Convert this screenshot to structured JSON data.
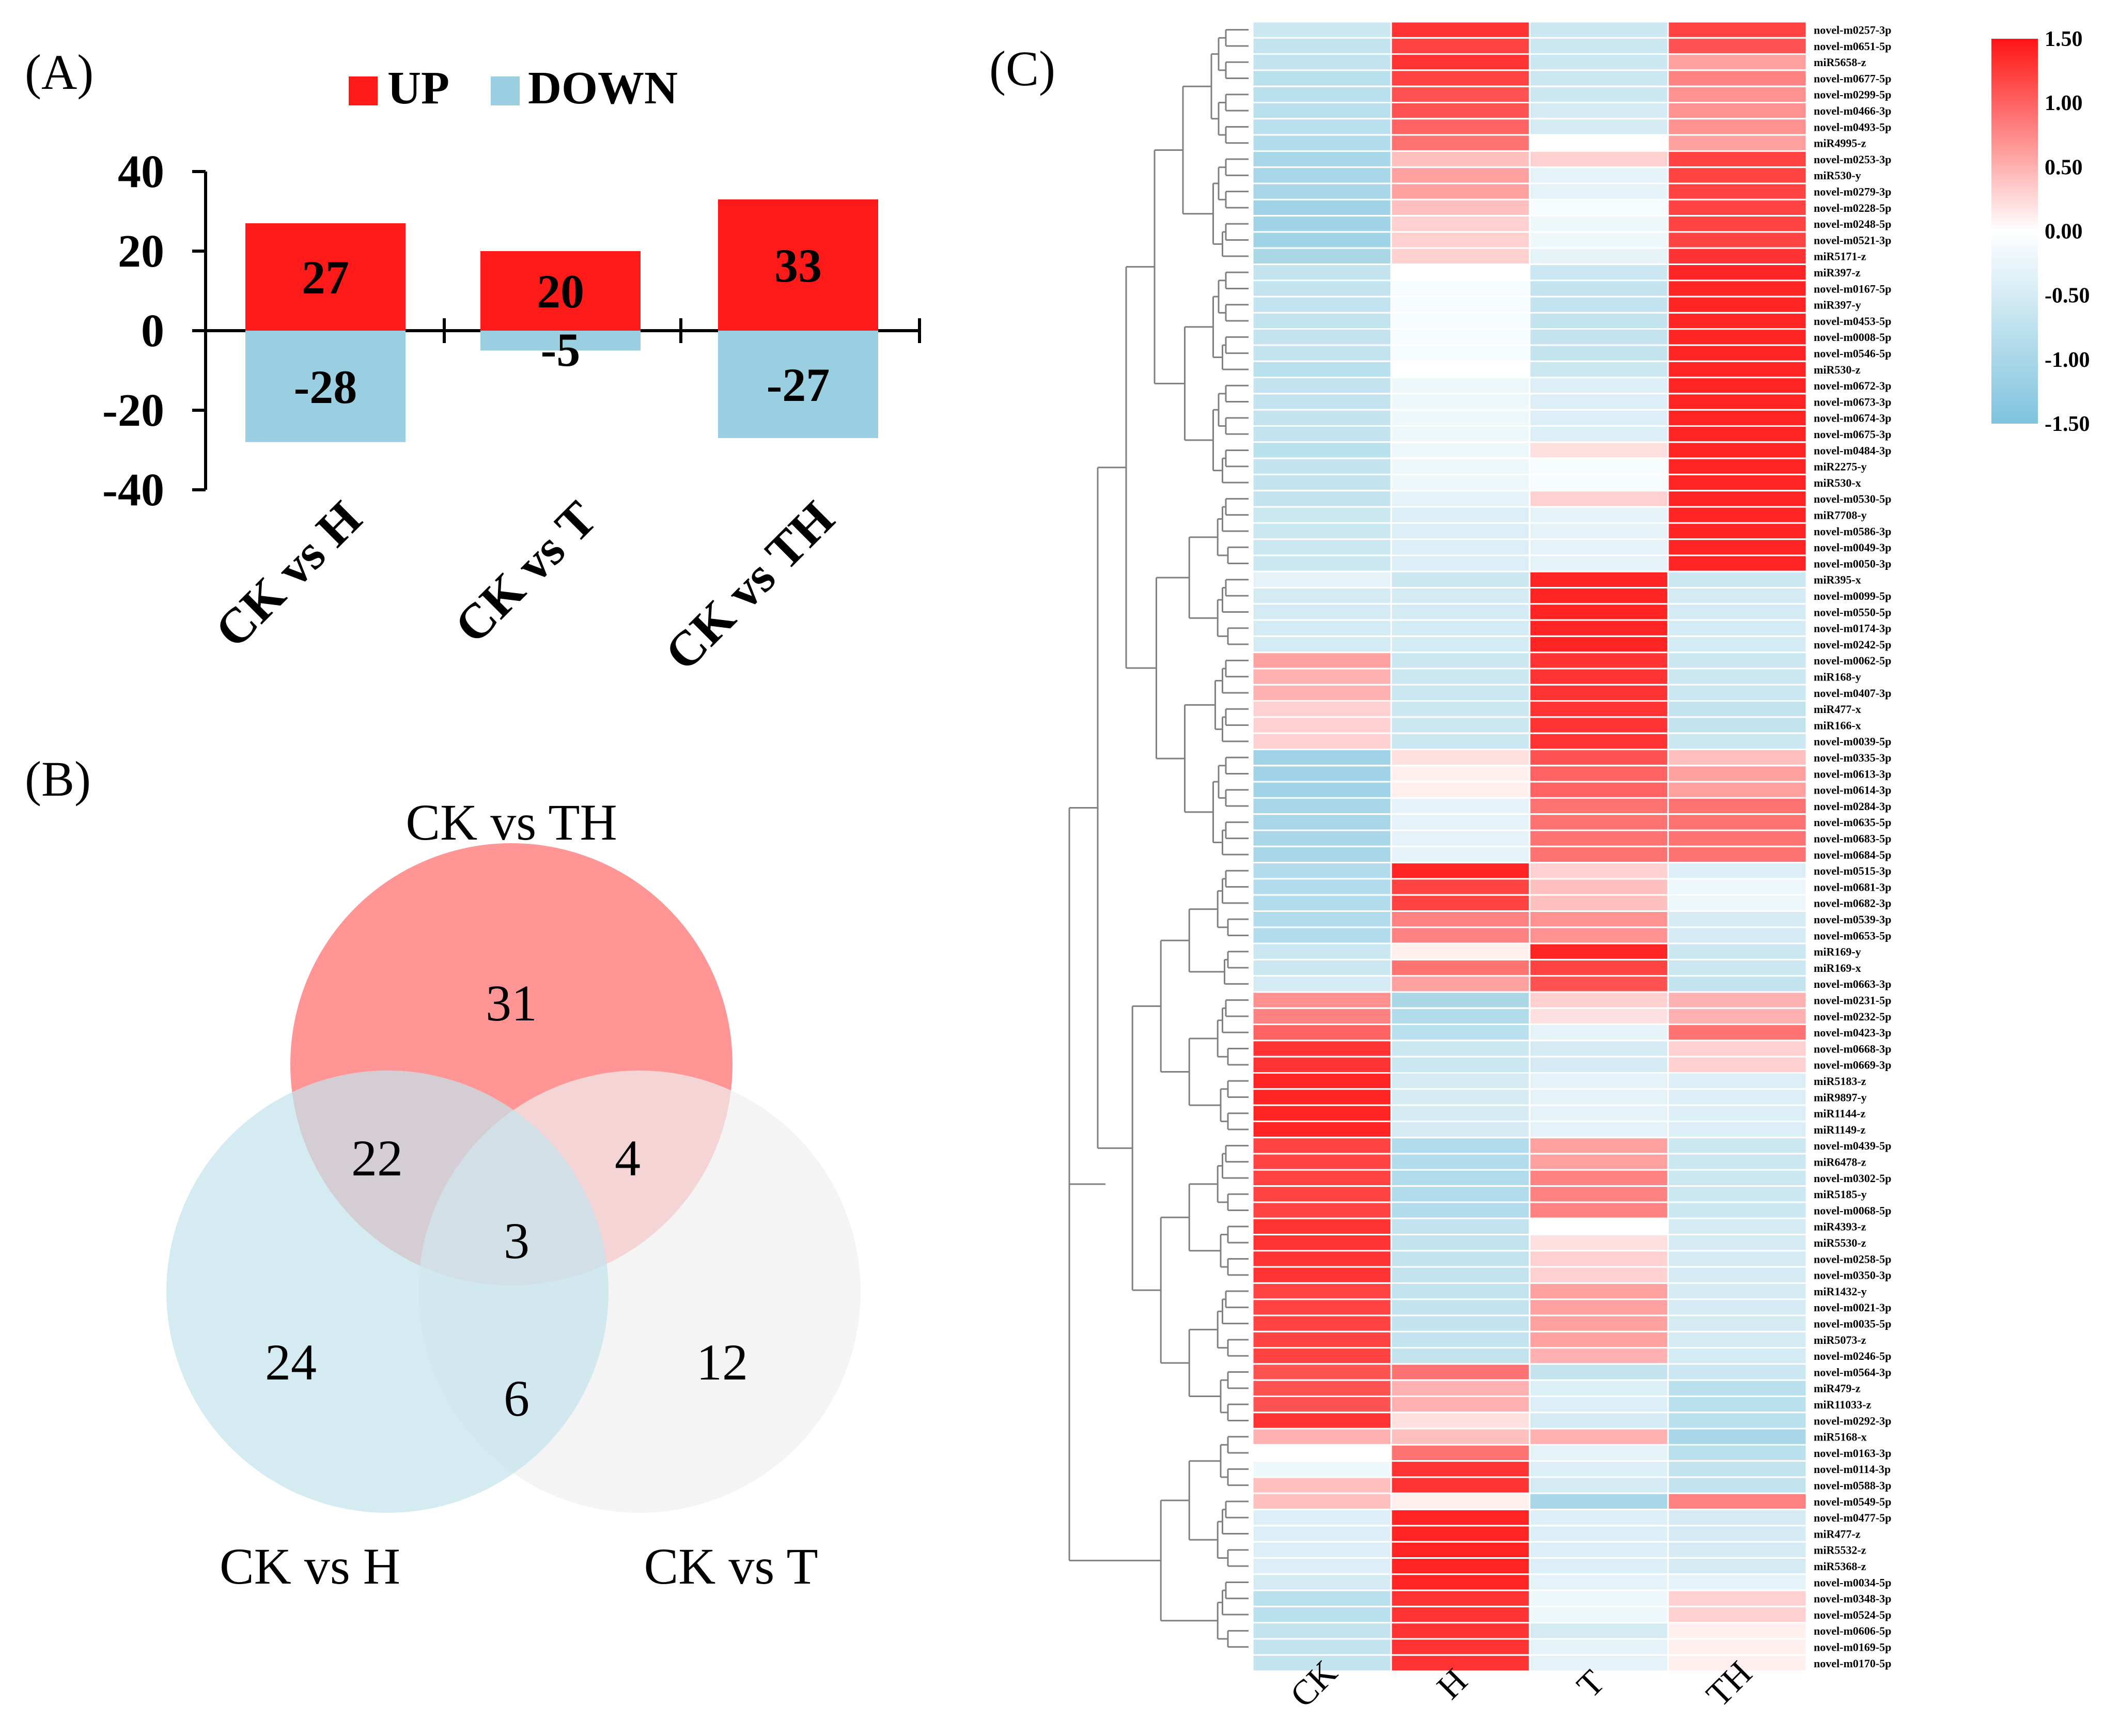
{
  "panels": {
    "a": "(A)",
    "b": "(B)",
    "c": "(C)"
  },
  "chart_data": [
    {
      "id": "panel-a",
      "type": "bar",
      "categories": [
        "CK vs H",
        "CK vs T",
        "CK vs TH"
      ],
      "series": [
        {
          "name": "UP",
          "values": [
            27,
            20,
            33
          ],
          "color": "#ff1a1a"
        },
        {
          "name": "DOWN",
          "values": [
            -28,
            -5,
            -27
          ],
          "color": "#99cfe0"
        }
      ],
      "title": "",
      "xlabel": "",
      "ylabel": "",
      "ylim": [
        -40,
        40
      ],
      "yticks": [
        40,
        20,
        0,
        -20,
        -40
      ],
      "legend_position": "top"
    },
    {
      "id": "panel-b",
      "type": "venn",
      "sets": [
        {
          "name": "CK vs TH",
          "color": "#ff8a8a"
        },
        {
          "name": "CK vs H",
          "color": "#c5e3ed"
        },
        {
          "name": "CK vs T",
          "color": "#f0f0f0"
        }
      ],
      "regions": {
        "TH_only": 31,
        "H_only": 24,
        "T_only": 12,
        "H_TH": 22,
        "TH_T": 4,
        "H_T": 6,
        "all": 3
      }
    },
    {
      "id": "panel-c",
      "type": "heatmap",
      "columns": [
        "CK",
        "H",
        "T",
        "TH"
      ],
      "colorbar": {
        "min": -1.5,
        "max": 1.5,
        "ticks": [
          "1.50",
          "1.00",
          "0.50",
          "0.00",
          "-0.50",
          "-1.00",
          "-1.50"
        ],
        "low_color": "#7ec3dd",
        "mid_color": "#ffffff",
        "high_color": "#ff1414"
      },
      "rows": [
        {
          "label": "novel-m0257-3p",
          "values": [
            -0.6,
            1.3,
            -0.6,
            1.2
          ]
        },
        {
          "label": "novel-m0651-5p",
          "values": [
            -0.7,
            1.2,
            -0.6,
            1.1
          ]
        },
        {
          "label": "miR5658-z",
          "values": [
            -0.7,
            1.3,
            -0.6,
            0.6
          ]
        },
        {
          "label": "novel-m0677-5p",
          "values": [
            -0.8,
            1.2,
            -0.6,
            0.8
          ]
        },
        {
          "label": "novel-m0299-5p",
          "values": [
            -0.8,
            1.1,
            -0.6,
            0.7
          ]
        },
        {
          "label": "novel-m0466-3p",
          "values": [
            -0.8,
            1.1,
            -0.5,
            0.7
          ]
        },
        {
          "label": "novel-m0493-5p",
          "values": [
            -0.8,
            1.0,
            -0.5,
            0.7
          ]
        },
        {
          "label": "miR4995-z",
          "values": [
            -0.9,
            0.9,
            0.0,
            0.6
          ]
        },
        {
          "label": "novel-m0253-3p",
          "values": [
            -1.0,
            0.4,
            0.3,
            1.2
          ]
        },
        {
          "label": "miR530-y",
          "values": [
            -1.0,
            0.6,
            -0.3,
            1.2
          ]
        },
        {
          "label": "novel-m0279-3p",
          "values": [
            -1.0,
            0.6,
            -0.3,
            1.2
          ]
        },
        {
          "label": "novel-m0228-5p",
          "values": [
            -1.1,
            0.4,
            -0.1,
            1.2
          ]
        },
        {
          "label": "novel-m0248-5p",
          "values": [
            -1.1,
            0.3,
            -0.2,
            1.2
          ]
        },
        {
          "label": "novel-m0521-3p",
          "values": [
            -1.1,
            0.3,
            -0.2,
            1.2
          ]
        },
        {
          "label": "miR5171-z",
          "values": [
            -1.0,
            0.3,
            -0.3,
            1.3
          ]
        },
        {
          "label": "miR397-z",
          "values": [
            -0.7,
            0.0,
            -0.6,
            1.4
          ]
        },
        {
          "label": "novel-m0167-5p",
          "values": [
            -0.7,
            -0.1,
            -0.7,
            1.4
          ]
        },
        {
          "label": "miR397-y",
          "values": [
            -0.7,
            -0.1,
            -0.7,
            1.4
          ]
        },
        {
          "label": "novel-m0453-5p",
          "values": [
            -0.7,
            -0.1,
            -0.7,
            1.4
          ]
        },
        {
          "label": "novel-m0008-5p",
          "values": [
            -0.7,
            -0.1,
            -0.7,
            1.4
          ]
        },
        {
          "label": "novel-m0546-5p",
          "values": [
            -0.7,
            -0.1,
            -0.7,
            1.4
          ]
        },
        {
          "label": "miR530-z",
          "values": [
            -0.8,
            0.0,
            -0.6,
            1.4
          ]
        },
        {
          "label": "novel-m0672-3p",
          "values": [
            -0.7,
            -0.2,
            -0.4,
            1.4
          ]
        },
        {
          "label": "novel-m0673-3p",
          "values": [
            -0.7,
            -0.2,
            -0.4,
            1.4
          ]
        },
        {
          "label": "novel-m0674-3p",
          "values": [
            -0.7,
            -0.2,
            -0.4,
            1.4
          ]
        },
        {
          "label": "novel-m0675-3p",
          "values": [
            -0.7,
            -0.2,
            -0.4,
            1.4
          ]
        },
        {
          "label": "novel-m0484-3p",
          "values": [
            -0.8,
            -0.2,
            0.2,
            1.4
          ]
        },
        {
          "label": "miR2275-y",
          "values": [
            -0.7,
            -0.2,
            -0.1,
            1.4
          ]
        },
        {
          "label": "miR530-x",
          "values": [
            -0.7,
            -0.2,
            -0.1,
            1.4
          ]
        },
        {
          "label": "novel-m0530-5p",
          "values": [
            -0.7,
            -0.3,
            0.3,
            1.4
          ]
        },
        {
          "label": "miR7708-y",
          "values": [
            -0.6,
            -0.4,
            -0.3,
            1.4
          ]
        },
        {
          "label": "novel-m0586-3p",
          "values": [
            -0.6,
            -0.4,
            -0.3,
            1.4
          ]
        },
        {
          "label": "novel-m0049-3p",
          "values": [
            -0.6,
            -0.4,
            -0.3,
            1.4
          ]
        },
        {
          "label": "novel-m0050-3p",
          "values": [
            -0.6,
            -0.4,
            -0.3,
            1.4
          ]
        },
        {
          "label": "miR395-x",
          "values": [
            -0.3,
            -0.6,
            1.4,
            -0.6
          ]
        },
        {
          "label": "novel-m0099-5p",
          "values": [
            -0.5,
            -0.5,
            1.4,
            -0.5
          ]
        },
        {
          "label": "novel-m0550-5p",
          "values": [
            -0.5,
            -0.5,
            1.4,
            -0.5
          ]
        },
        {
          "label": "novel-m0174-3p",
          "values": [
            -0.5,
            -0.5,
            1.4,
            -0.5
          ]
        },
        {
          "label": "novel-m0242-5p",
          "values": [
            -0.5,
            -0.5,
            1.4,
            -0.5
          ]
        },
        {
          "label": "novel-m0062-5p",
          "values": [
            0.6,
            -0.6,
            1.3,
            -0.6
          ]
        },
        {
          "label": "miR168-y",
          "values": [
            0.5,
            -0.6,
            1.3,
            -0.6
          ]
        },
        {
          "label": "novel-m0407-3p",
          "values": [
            0.5,
            -0.6,
            1.3,
            -0.6
          ]
        },
        {
          "label": "miR477-x",
          "values": [
            0.3,
            -0.6,
            1.3,
            -0.7
          ]
        },
        {
          "label": "miR166-x",
          "values": [
            0.3,
            -0.6,
            1.3,
            -0.7
          ]
        },
        {
          "label": "novel-m0039-5p",
          "values": [
            0.3,
            -0.6,
            1.3,
            -0.6
          ]
        },
        {
          "label": "novel-m0335-3p",
          "values": [
            -1.1,
            0.2,
            1.1,
            0.4
          ]
        },
        {
          "label": "novel-m0613-3p",
          "values": [
            -1.1,
            0.1,
            1.0,
            0.6
          ]
        },
        {
          "label": "novel-m0614-3p",
          "values": [
            -1.1,
            0.1,
            1.0,
            0.6
          ]
        },
        {
          "label": "novel-m0284-3p",
          "values": [
            -1.0,
            -0.3,
            0.9,
            0.9
          ]
        },
        {
          "label": "novel-m0635-5p",
          "values": [
            -1.0,
            -0.3,
            0.9,
            0.9
          ]
        },
        {
          "label": "novel-m0683-5p",
          "values": [
            -1.0,
            -0.3,
            0.9,
            0.9
          ]
        },
        {
          "label": "novel-m0684-5p",
          "values": [
            -1.0,
            -0.3,
            0.9,
            0.9
          ]
        },
        {
          "label": "novel-m0515-3p",
          "values": [
            -0.9,
            1.4,
            0.3,
            -0.4
          ]
        },
        {
          "label": "novel-m0681-3p",
          "values": [
            -0.9,
            1.2,
            0.4,
            -0.2
          ]
        },
        {
          "label": "novel-m0682-3p",
          "values": [
            -0.9,
            1.2,
            0.4,
            -0.2
          ]
        },
        {
          "label": "novel-m0539-3p",
          "values": [
            -0.9,
            0.8,
            0.7,
            -0.5
          ]
        },
        {
          "label": "novel-m0653-5p",
          "values": [
            -0.9,
            0.8,
            0.7,
            -0.5
          ]
        },
        {
          "label": "miR169-y",
          "values": [
            -0.6,
            0.1,
            1.4,
            -0.6
          ]
        },
        {
          "label": "miR169-x",
          "values": [
            -0.6,
            0.9,
            1.2,
            -0.6
          ]
        },
        {
          "label": "novel-m0663-3p",
          "values": [
            -0.5,
            0.6,
            1.1,
            -0.7
          ]
        },
        {
          "label": "novel-m0231-5p",
          "values": [
            0.7,
            -1.0,
            0.3,
            0.5
          ]
        },
        {
          "label": "novel-m0232-5p",
          "values": [
            0.8,
            -0.9,
            0.2,
            0.5
          ]
        },
        {
          "label": "novel-m0423-3p",
          "values": [
            1.0,
            -0.8,
            -0.3,
            0.9
          ]
        },
        {
          "label": "novel-m0668-3p",
          "values": [
            1.3,
            -0.6,
            -0.5,
            0.3
          ]
        },
        {
          "label": "novel-m0669-3p",
          "values": [
            1.3,
            -0.6,
            -0.5,
            0.3
          ]
        },
        {
          "label": "miR5183-z",
          "values": [
            1.4,
            -0.5,
            -0.3,
            -0.4
          ]
        },
        {
          "label": "miR9897-y",
          "values": [
            1.4,
            -0.5,
            -0.3,
            -0.4
          ]
        },
        {
          "label": "miR1144-z",
          "values": [
            1.4,
            -0.5,
            -0.3,
            -0.4
          ]
        },
        {
          "label": "miR1149-z",
          "values": [
            1.4,
            -0.5,
            -0.3,
            -0.4
          ]
        },
        {
          "label": "novel-m0439-5p",
          "values": [
            1.2,
            -0.9,
            0.6,
            -0.6
          ]
        },
        {
          "label": "miR6478-z",
          "values": [
            1.2,
            -0.9,
            0.6,
            -0.6
          ]
        },
        {
          "label": "novel-m0302-5p",
          "values": [
            1.2,
            -0.9,
            0.8,
            -0.6
          ]
        },
        {
          "label": "miR5185-y",
          "values": [
            1.2,
            -0.9,
            0.8,
            -0.6
          ]
        },
        {
          "label": "novel-m0068-5p",
          "values": [
            1.2,
            -0.9,
            0.8,
            -0.6
          ]
        },
        {
          "label": "miR4393-z",
          "values": [
            1.3,
            -0.7,
            0.0,
            -0.5
          ]
        },
        {
          "label": "miR5530-z",
          "values": [
            1.3,
            -0.7,
            0.2,
            -0.5
          ]
        },
        {
          "label": "novel-m0258-5p",
          "values": [
            1.3,
            -0.7,
            0.3,
            -0.5
          ]
        },
        {
          "label": "novel-m0350-3p",
          "values": [
            1.3,
            -0.7,
            0.3,
            -0.5
          ]
        },
        {
          "label": "miR1432-y",
          "values": [
            1.2,
            -0.7,
            0.6,
            -0.5
          ]
        },
        {
          "label": "novel-m0021-3p",
          "values": [
            1.2,
            -0.7,
            0.6,
            -0.5
          ]
        },
        {
          "label": "novel-m0035-5p",
          "values": [
            1.2,
            -0.7,
            0.6,
            -0.5
          ]
        },
        {
          "label": "miR5073-z",
          "values": [
            1.2,
            -0.7,
            0.6,
            -0.5
          ]
        },
        {
          "label": "novel-m0246-5p",
          "values": [
            1.2,
            -0.7,
            0.5,
            -0.5
          ]
        },
        {
          "label": "novel-m0564-3p",
          "values": [
            1.1,
            0.9,
            -0.7,
            -0.6
          ]
        },
        {
          "label": "miR479-z",
          "values": [
            1.1,
            0.5,
            -0.4,
            -0.8
          ]
        },
        {
          "label": "miR11033-z",
          "values": [
            1.1,
            0.5,
            -0.4,
            -0.8
          ]
        },
        {
          "label": "novel-m0292-3p",
          "values": [
            1.3,
            0.2,
            -0.5,
            -0.8
          ]
        },
        {
          "label": "miR5168-x",
          "values": [
            0.5,
            0.4,
            0.5,
            -1.0
          ]
        },
        {
          "label": "novel-m0163-3p",
          "values": [
            0.0,
            0.9,
            -0.3,
            -0.8
          ]
        },
        {
          "label": "novel-m0114-3p",
          "values": [
            -0.2,
            1.3,
            -0.4,
            -0.7
          ]
        },
        {
          "label": "novel-m0588-3p",
          "values": [
            0.4,
            1.3,
            -0.5,
            -0.7
          ]
        },
        {
          "label": "novel-m0549-5p",
          "values": [
            0.4,
            0.1,
            -1.0,
            0.8
          ]
        },
        {
          "label": "novel-m0477-5p",
          "values": [
            -0.4,
            1.4,
            -0.4,
            -0.5
          ]
        },
        {
          "label": "miR477-z",
          "values": [
            -0.4,
            1.4,
            -0.4,
            -0.5
          ]
        },
        {
          "label": "miR5532-z",
          "values": [
            -0.4,
            1.4,
            -0.4,
            -0.5
          ]
        },
        {
          "label": "miR5368-z",
          "values": [
            -0.4,
            1.4,
            -0.4,
            -0.5
          ]
        },
        {
          "label": "novel-m0034-5p",
          "values": [
            -0.5,
            1.4,
            -0.3,
            -0.3
          ]
        },
        {
          "label": "novel-m0348-3p",
          "values": [
            -0.8,
            1.3,
            -0.2,
            0.3
          ]
        },
        {
          "label": "novel-m0524-5p",
          "values": [
            -0.8,
            1.3,
            -0.2,
            0.3
          ]
        },
        {
          "label": "novel-m0606-5p",
          "values": [
            -0.7,
            1.3,
            -0.5,
            0.1
          ]
        },
        {
          "label": "novel-m0169-5p",
          "values": [
            -0.7,
            1.3,
            -0.3,
            0.1
          ]
        },
        {
          "label": "novel-m0170-5p",
          "values": [
            -0.7,
            1.3,
            -0.3,
            0.1
          ]
        }
      ],
      "row_clusters": [
        [
          0,
          7
        ],
        [
          8,
          14
        ],
        [
          15,
          21
        ],
        [
          22,
          28
        ],
        [
          29,
          33
        ],
        [
          34,
          38
        ],
        [
          39,
          44
        ],
        [
          45,
          51
        ],
        [
          52,
          56
        ],
        [
          57,
          59
        ],
        [
          60,
          64
        ],
        [
          65,
          68
        ],
        [
          69,
          73
        ],
        [
          74,
          77
        ],
        [
          78,
          82
        ],
        [
          83,
          86
        ],
        [
          87,
          90
        ],
        [
          91,
          95
        ],
        [
          96,
          100
        ]
      ]
    }
  ]
}
